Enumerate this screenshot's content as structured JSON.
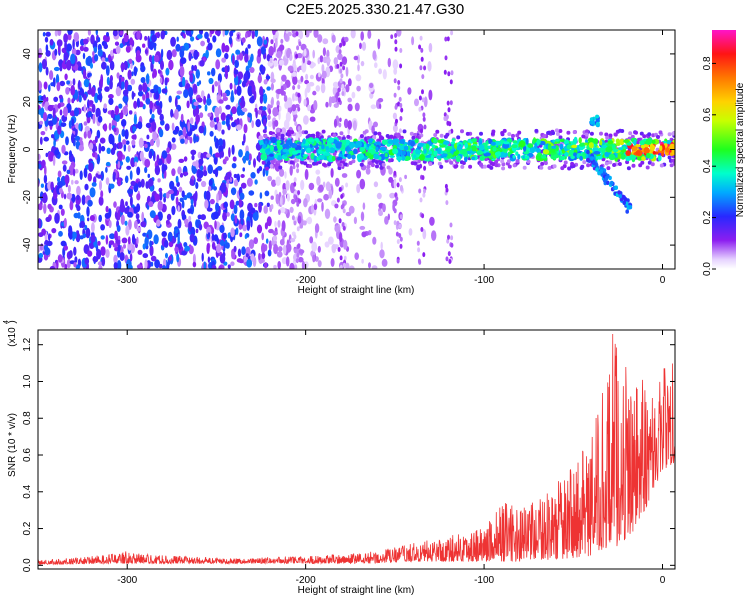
{
  "title": "C2E5.2025.330.21.47.G30",
  "chart_data": [
    {
      "type": "heatmap",
      "xlabel": "Height of straight line (km)",
      "ylabel": "Frequency (Hz)",
      "xlim": [
        -350,
        7
      ],
      "ylim": [
        -50,
        50
      ],
      "x_ticks": [
        -300,
        -200,
        -100,
        0
      ],
      "y_ticks": [
        40,
        20,
        0,
        -20,
        -40
      ],
      "colorbar": {
        "label": "Normalized spectral amplitude",
        "range": [
          0,
          0.93
        ],
        "ticks": [
          "0.0",
          "0.2",
          "0.4",
          "0.6",
          "0.8"
        ],
        "tick_values": [
          0,
          0.2,
          0.4,
          0.6,
          0.8
        ],
        "colormap": "rainbow (white → purple → blue → cyan → green → yellow → orange → red → magenta)"
      },
      "features": {
        "noise_region_km": [
          -350,
          -210
        ],
        "noise_amplitude_typical": 0.2,
        "signal_band_center_hz": 0,
        "signal_band_start_km": -225,
        "signal_band_halfwidth_hz": 4,
        "signal_amplitude_range": [
          0.25,
          0.9
        ],
        "signal_peak_region_km": [
          -20,
          5
        ],
        "secondary_branch": {
          "from_km": -42,
          "to_km": -18,
          "from_hz": -2,
          "to_hz": -25
        },
        "upper_blob": {
          "x_km": -38,
          "y_hz": 12
        }
      }
    },
    {
      "type": "line",
      "xlabel": "Height of straight line (km)",
      "ylabel": "SNR (10 * v/v)",
      "y_multiplier_label": "(x10",
      "y_multiplier_exp": "4",
      "xlim": [
        -350,
        7
      ],
      "ylim": [
        -0.02,
        1.28
      ],
      "x_ticks": [
        -300,
        -200,
        -100,
        0
      ],
      "y_ticks": [
        "0.0",
        "0.2",
        "0.4",
        "0.6",
        "0.8",
        "1.0",
        "1.2"
      ],
      "y_tick_values": [
        0,
        0.2,
        0.4,
        0.6,
        0.8,
        1.0,
        1.2
      ],
      "color": "#ee3333",
      "envelope": {
        "x_km": [
          -350,
          -330,
          -310,
          -300,
          -290,
          -270,
          -250,
          -230,
          -210,
          -200,
          -180,
          -160,
          -140,
          -120,
          -100,
          -90,
          -80,
          -70,
          -60,
          -50,
          -40,
          -35,
          -30,
          -28,
          -25,
          -20,
          -15,
          -10,
          -5,
          0,
          5,
          7
        ],
        "y_max": [
          0.03,
          0.04,
          0.06,
          0.08,
          0.06,
          0.05,
          0.04,
          0.04,
          0.05,
          0.05,
          0.06,
          0.08,
          0.12,
          0.16,
          0.22,
          0.35,
          0.32,
          0.35,
          0.45,
          0.55,
          0.7,
          0.9,
          1.1,
          1.28,
          1.25,
          1.1,
          1.0,
          1.05,
          1.0,
          1.1,
          1.15,
          1.12
        ],
        "y_base": [
          0.005,
          0.005,
          0.01,
          0.01,
          0.01,
          0.01,
          0.01,
          0.01,
          0.01,
          0.01,
          0.01,
          0.01,
          0.02,
          0.02,
          0.02,
          0.02,
          0.02,
          0.03,
          0.03,
          0.04,
          0.05,
          0.08,
          0.1,
          0.12,
          0.1,
          0.15,
          0.2,
          0.3,
          0.4,
          0.5,
          0.55,
          0.55
        ]
      }
    }
  ]
}
